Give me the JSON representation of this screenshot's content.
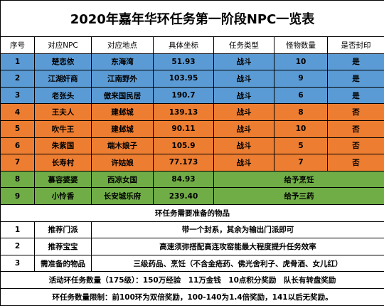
{
  "title": "2020年嘉年华环任务第一阶段NPC一览表",
  "table": {
    "header": [
      "序号",
      "对应NPC",
      "对应地点",
      "具体坐标",
      "任务类型",
      "怪物数量",
      "是否封印"
    ],
    "rows": [
      [
        "1",
        "楚恋依",
        "东海湾",
        "51.93",
        "战斗",
        "10",
        "是"
      ],
      [
        "2",
        "江湖奸商",
        "江南野外",
        "103.95",
        "战斗",
        "9",
        "是"
      ],
      [
        "3",
        "老张头",
        "傲来国民居",
        "190.7",
        "战斗",
        "6",
        "是"
      ],
      [
        "4",
        "王夫人",
        "建邺城",
        "139.13",
        "战斗",
        "8",
        "否"
      ],
      [
        "5",
        "吹牛王",
        "建邺城",
        "90.11",
        "战斗",
        "10",
        "否"
      ],
      [
        "6",
        "朱紫国",
        "端木娘子",
        "105.9",
        "战斗",
        "5",
        "否"
      ],
      [
        "7",
        "长寿村",
        "许姑娘",
        "77.173",
        "战斗",
        "7",
        "否"
      ],
      [
        "8",
        "慕容婆婆",
        "西凉女国",
        "84.93",
        "给予烹饪"
      ],
      [
        "9",
        "小怜香",
        "长安城乐府",
        "239.40",
        "给予三药"
      ]
    ]
  },
  "prep": {
    "title": "环任务需要准备的物品",
    "rows": [
      [
        "1",
        "推荐门派",
        "带一个封系，其余为输出门派即可"
      ],
      [
        "2",
        "推荐宝宝",
        "高速须弥搭配高连攻窑能最大程度提升任务效率"
      ],
      [
        "3",
        "需准备的物品",
        "三级药品、烹饪（不含金疮药、佛光舍利子、虎骨酒、女儿红）"
      ]
    ]
  },
  "footer": [
    "活动环任务数量（175级）：150万经验　11万金钱　10点积分奖励　队长有转盘奖励",
    "环任务数量限制：前100环为双倍奖励，100-140为1.4倍奖励，141以后无奖励。"
  ]
}
